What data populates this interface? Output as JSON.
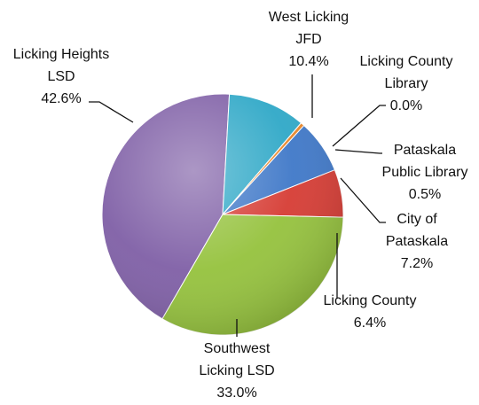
{
  "chart_data": {
    "type": "pie",
    "title": "",
    "slices": [
      {
        "name": "Licking Heights LSD",
        "label_lines": [
          "Licking Heights",
          "LSD"
        ],
        "value": 42.6,
        "pct_label": "42.6%",
        "color": "#7f5fa6"
      },
      {
        "name": "West Licking JFD",
        "label_lines": [
          "West Licking",
          "JFD"
        ],
        "value": 10.4,
        "pct_label": "10.4%",
        "color": "#2fa8c7"
      },
      {
        "name": "Licking County Library",
        "label_lines": [
          "Licking County",
          "Library"
        ],
        "value": 0.0,
        "pct_label": "0.0%",
        "color": "#a6a6a6"
      },
      {
        "name": "Pataskala Public Library",
        "label_lines": [
          "Pataskala",
          "Public Library"
        ],
        "value": 0.5,
        "pct_label": "0.5%",
        "color": "#e8862a"
      },
      {
        "name": "City of Pataskala",
        "label_lines": [
          "City of",
          "Pataskala"
        ],
        "value": 7.2,
        "pct_label": "7.2%",
        "color": "#3f78c8"
      },
      {
        "name": "Licking County",
        "label_lines": [
          "Licking County"
        ],
        "value": 6.4,
        "pct_label": "6.4%",
        "color": "#d63c34"
      },
      {
        "name": "Southwest Licking LSD",
        "label_lines": [
          "Southwest",
          "Licking LSD"
        ],
        "value": 33.0,
        "pct_label": "33.0%",
        "color": "#95c23d"
      }
    ],
    "legend": "none",
    "data_labels": "outside with leader lines"
  }
}
